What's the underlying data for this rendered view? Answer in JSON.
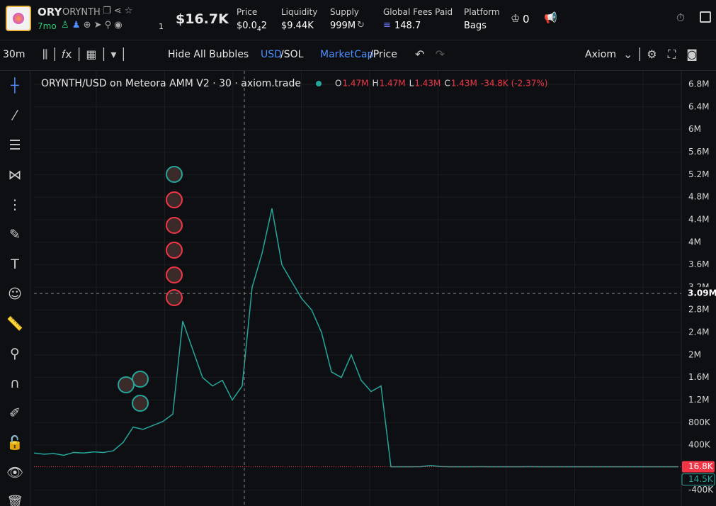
{
  "header": {
    "ticker": "ORY",
    "name": "ORYNTH",
    "age": "7mo",
    "watchers": "1",
    "market_cap": "$16.7K",
    "stats": [
      {
        "label": "Price",
        "value": "$0.0",
        "sub": "4",
        "tail": "2"
      },
      {
        "label": "Liquidity",
        "value": "$9.44K"
      },
      {
        "label": "Supply",
        "value": "999M"
      },
      {
        "label": "Global Fees Paid",
        "value": "148.7"
      },
      {
        "label": "Platform",
        "value": "Bags"
      }
    ],
    "crown_count": "0"
  },
  "toolbar": {
    "interval": "30m",
    "bubbles": "Hide All Bubbles",
    "currency": "USD",
    "currency_alt": "/SOL",
    "mode": "MarketCap",
    "mode_alt": "/Price",
    "provider": "Axiom"
  },
  "chart_data": {
    "type": "line",
    "title": "ORYNTH/USD on Meteora AMM V2 · 30 · axiom.trade",
    "ohlc": [
      {
        "key": "O",
        "value": "1.47M"
      },
      {
        "key": "H",
        "value": "1.47M"
      },
      {
        "key": "L",
        "value": "1.43M"
      },
      {
        "key": "C",
        "value": "1.43M"
      }
    ],
    "change": "-34.8K (-2.37%)",
    "x": [
      0,
      1,
      2,
      3,
      4,
      5,
      6,
      7,
      8,
      9,
      10,
      11,
      12,
      13,
      14,
      15,
      16,
      17,
      18,
      19,
      20,
      21,
      22,
      23,
      24,
      25,
      26,
      27,
      28,
      29,
      30,
      31,
      32,
      33,
      34,
      35,
      36,
      37,
      38,
      39,
      40,
      41,
      42,
      43,
      44,
      45,
      46,
      47,
      48,
      49,
      50,
      51,
      52,
      53,
      54,
      55,
      56,
      57,
      58,
      59,
      60,
      61,
      62,
      63,
      64,
      65
    ],
    "series": [
      {
        "name": "ORYNTH/USD",
        "color": "#26a69a",
        "values": [
          260000,
          240000,
          250000,
          220000,
          270000,
          260000,
          280000,
          270000,
          300000,
          450000,
          720000,
          680000,
          750000,
          820000,
          950000,
          2600000,
          2100000,
          1600000,
          1450000,
          1550000,
          1200000,
          1450000,
          3200000,
          3800000,
          4600000,
          3600000,
          3300000,
          3000000,
          2800000,
          2400000,
          1700000,
          1600000,
          2000000,
          1550000,
          1350000,
          1450000,
          16800,
          17000,
          16800,
          17500,
          40000,
          20000,
          16800,
          17000,
          16800,
          18000,
          16800,
          17000,
          16800,
          16800,
          17200,
          16800,
          16800,
          17000,
          16800,
          16800,
          17000,
          16800,
          16800,
          16800,
          17000,
          16800,
          16800,
          16800,
          16800,
          16800
        ]
      }
    ],
    "xlim": [
      0,
      65
    ],
    "ylim": [
      -680000,
      7040000
    ],
    "yticks": [
      {
        "value": 6800000,
        "label": "6.8M"
      },
      {
        "value": 6400000,
        "label": "6.4M"
      },
      {
        "value": 6000000,
        "label": "6M"
      },
      {
        "value": 5600000,
        "label": "5.6M"
      },
      {
        "value": 5200000,
        "label": "5.2M"
      },
      {
        "value": 4800000,
        "label": "4.8M"
      },
      {
        "value": 4400000,
        "label": "4.4M"
      },
      {
        "value": 4000000,
        "label": "4M"
      },
      {
        "value": 3600000,
        "label": "3.6M"
      },
      {
        "value": 3200000,
        "label": "3.2M"
      },
      {
        "value": 2800000,
        "label": "2.8M"
      },
      {
        "value": 2400000,
        "label": "2.4M"
      },
      {
        "value": 2000000,
        "label": "2M"
      },
      {
        "value": 1600000,
        "label": "1.6M"
      },
      {
        "value": 1200000,
        "label": "1.2M"
      },
      {
        "value": 800000,
        "label": "800K"
      },
      {
        "value": 400000,
        "label": "400K"
      },
      {
        "value": -400000,
        "label": "-400K"
      }
    ],
    "crosshair": {
      "value": 3090000,
      "label": "3.09M"
    },
    "last_price": {
      "value": 16800,
      "label": "16.8K",
      "color": "#f23645"
    },
    "prev_price": {
      "value": 14500,
      "label": "14.5K",
      "color": "#26a69a"
    },
    "grid": true
  }
}
